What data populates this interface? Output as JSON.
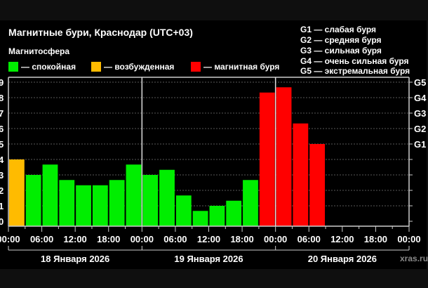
{
  "title": "Магнитные бури, Краснодар (UTC+03)",
  "legend_title": "Магнитосфера",
  "legend": [
    {
      "label": "— спокойная",
      "color": "#00ee00"
    },
    {
      "label": "— возбужденная",
      "color": "#ffbb00"
    },
    {
      "label": "— магнитная буря",
      "color": "#ff0000"
    }
  ],
  "g_scale": [
    "G1 — слабая буря",
    "G2 — средняя буря",
    "G3 — сильная буря",
    "G4 — очень сильная буря",
    "G5 — экстремальная буря"
  ],
  "watermark": "xras.ru",
  "chart_data": {
    "type": "bar",
    "ylim": [
      0,
      9
    ],
    "y_ticks": [
      "0",
      "1",
      "2",
      "3",
      "4",
      "5",
      "6",
      "7",
      "8",
      "9"
    ],
    "right_ticks": {
      "G1": 5,
      "G2": 6,
      "G3": 7,
      "G4": 8,
      "G5": 9
    },
    "grid": true,
    "x_tick_labels": [
      "00:00",
      "06:00",
      "12:00",
      "18:00",
      "00:00",
      "06:00",
      "12:00",
      "18:00",
      "00:00",
      "06:00",
      "12:00",
      "18:00",
      "00:00"
    ],
    "days": [
      "18 Января 2026",
      "19 Января 2026",
      "20 Января 2026"
    ],
    "slots_per_day": 8,
    "values": [
      4.0,
      3.0,
      3.67,
      2.67,
      2.33,
      2.33,
      2.67,
      3.67,
      3.0,
      3.33,
      1.67,
      0.67,
      1.0,
      1.33,
      2.67,
      8.33,
      8.67,
      6.33,
      5.0
    ],
    "colors": {
      "quiet": "#00ee00",
      "active": "#ffbb00",
      "storm": "#ff0000"
    }
  }
}
